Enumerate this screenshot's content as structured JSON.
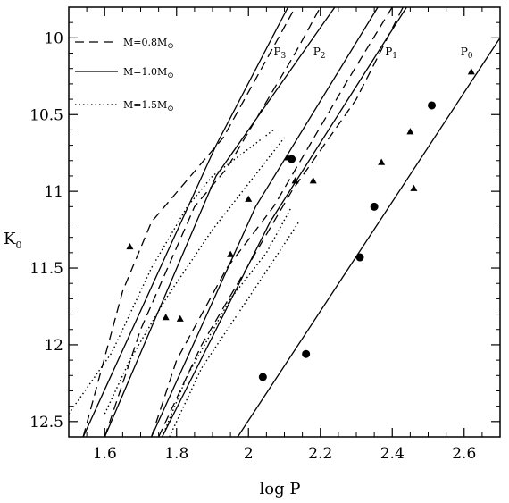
{
  "chart_data": {
    "type": "scatter",
    "xlabel": "log P",
    "ylabel": "K",
    "ylabel_sub": "0",
    "xlim": [
      1.5,
      2.7
    ],
    "ylim": [
      9.8,
      12.6
    ],
    "y_inverted": true,
    "x_ticks": [
      "1.6",
      "1.8",
      "2",
      "2.2",
      "2.4",
      "2.6"
    ],
    "x_tick_values": [
      1.6,
      1.8,
      2.0,
      2.2,
      2.4,
      2.6
    ],
    "y_ticks": [
      "10",
      "10.5",
      "11",
      "11.5",
      "12",
      "12.5"
    ],
    "y_tick_values": [
      10,
      10.5,
      11,
      11.5,
      12,
      12.5
    ],
    "legend": {
      "placement": "top-left",
      "entries": [
        {
          "prefix": "M=0.8M",
          "sub": "⊙",
          "style": "dashed"
        },
        {
          "prefix": "M=1.0M",
          "sub": "⊙",
          "style": "solid"
        },
        {
          "prefix": "M=1.5M",
          "sub": "⊙",
          "style": "dotted"
        }
      ]
    },
    "annotations": [
      {
        "base": "P",
        "sub": "3",
        "x": 2.07,
        "y": 10.09
      },
      {
        "base": "P",
        "sub": "2",
        "x": 2.18,
        "y": 10.09
      },
      {
        "base": "P",
        "sub": "1",
        "x": 2.38,
        "y": 10.09
      },
      {
        "base": "P",
        "sub": "0",
        "x": 2.59,
        "y": 10.09
      }
    ],
    "series": [
      {
        "style": "solid",
        "points": [
          [
            1.54,
            12.6
          ],
          [
            1.91,
            10.7
          ],
          [
            2.11,
            9.8
          ]
        ]
      },
      {
        "style": "solid",
        "points": [
          [
            1.6,
            12.6
          ],
          [
            1.91,
            10.9
          ],
          [
            2.24,
            9.8
          ]
        ]
      },
      {
        "style": "solid",
        "points": [
          [
            1.73,
            12.6
          ],
          [
            2.02,
            11.1
          ],
          [
            2.36,
            9.8
          ]
        ]
      },
      {
        "style": "solid",
        "points": [
          [
            1.76,
            12.6
          ],
          [
            2.06,
            11.2
          ],
          [
            2.44,
            9.8
          ]
        ]
      },
      {
        "style": "solid",
        "points": [
          [
            1.97,
            12.6
          ],
          [
            2.7,
            10.0
          ]
        ]
      },
      {
        "style": "dashed",
        "points": [
          [
            1.54,
            12.6
          ],
          [
            1.65,
            11.65
          ],
          [
            1.73,
            11.2
          ],
          [
            1.93,
            10.65
          ],
          [
            2.06,
            10.1
          ],
          [
            2.13,
            9.8
          ]
        ]
      },
      {
        "style": "dashed",
        "points": [
          [
            1.6,
            12.6
          ],
          [
            1.7,
            11.9
          ],
          [
            1.85,
            11.1
          ],
          [
            1.94,
            10.85
          ],
          [
            2.13,
            10.1
          ],
          [
            2.2,
            9.8
          ]
        ]
      },
      {
        "style": "dashed",
        "points": [
          [
            1.73,
            12.6
          ],
          [
            1.8,
            12.1
          ],
          [
            1.94,
            11.5
          ],
          [
            2.07,
            11.1
          ],
          [
            2.27,
            10.3
          ],
          [
            2.4,
            9.8
          ]
        ]
      },
      {
        "style": "dashed",
        "points": [
          [
            1.75,
            12.6
          ],
          [
            1.87,
            12.0
          ],
          [
            1.97,
            11.6
          ],
          [
            2.12,
            11.0
          ],
          [
            2.3,
            10.4
          ],
          [
            2.43,
            9.8
          ]
        ]
      },
      {
        "style": "dotted",
        "points": [
          [
            1.5,
            12.45
          ],
          [
            1.62,
            12.05
          ],
          [
            1.73,
            11.5
          ],
          [
            1.83,
            11.1
          ],
          [
            1.9,
            10.9
          ],
          [
            2.07,
            10.6
          ]
        ]
      },
      {
        "style": "dotted",
        "points": [
          [
            1.6,
            12.45
          ],
          [
            1.67,
            12.1
          ],
          [
            1.77,
            11.7
          ],
          [
            1.9,
            11.25
          ],
          [
            2.0,
            10.95
          ],
          [
            2.1,
            10.65
          ]
        ]
      },
      {
        "style": "dotted",
        "points": [
          [
            1.76,
            12.6
          ],
          [
            1.83,
            12.2
          ],
          [
            1.95,
            11.7
          ],
          [
            2.05,
            11.4
          ],
          [
            2.12,
            11.1
          ]
        ]
      },
      {
        "style": "dotted",
        "points": [
          [
            1.78,
            12.6
          ],
          [
            1.87,
            12.15
          ],
          [
            1.97,
            11.8
          ],
          [
            2.07,
            11.45
          ],
          [
            2.14,
            11.2
          ]
        ]
      },
      {
        "marker": "triangle",
        "points": [
          [
            1.67,
            11.36
          ],
          [
            1.77,
            11.82
          ],
          [
            1.81,
            11.83
          ],
          [
            1.95,
            11.41
          ],
          [
            2.0,
            11.05
          ],
          [
            2.11,
            10.78
          ],
          [
            2.13,
            10.93
          ],
          [
            2.18,
            10.93
          ],
          [
            2.37,
            10.81
          ],
          [
            2.45,
            10.61
          ],
          [
            2.46,
            10.98
          ],
          [
            2.62,
            10.22
          ]
        ]
      },
      {
        "marker": "circle",
        "points": [
          [
            2.04,
            12.21
          ],
          [
            2.12,
            10.79
          ],
          [
            2.16,
            12.06
          ],
          [
            2.31,
            11.43
          ],
          [
            2.35,
            11.1
          ],
          [
            2.51,
            10.44
          ]
        ]
      }
    ]
  }
}
